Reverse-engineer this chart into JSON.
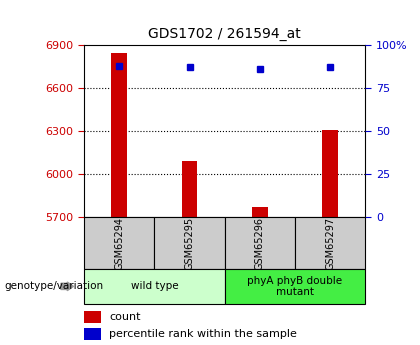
{
  "title": "GDS1702 / 261594_at",
  "samples": [
    "GSM65294",
    "GSM65295",
    "GSM65296",
    "GSM65297"
  ],
  "counts": [
    6840,
    6090,
    5770,
    6310
  ],
  "percentiles": [
    88,
    87,
    86,
    87
  ],
  "ylim_left": [
    5700,
    6900
  ],
  "ylim_right": [
    0,
    100
  ],
  "yticks_left": [
    5700,
    6000,
    6300,
    6600,
    6900
  ],
  "yticks_right": [
    0,
    25,
    50,
    75,
    100
  ],
  "bar_color": "#cc0000",
  "dot_color": "#0000cc",
  "groups": [
    {
      "label": "wild type",
      "indices": [
        0,
        1
      ],
      "color": "#ccffcc"
    },
    {
      "label": "phyA phyB double\nmutant",
      "indices": [
        2,
        3
      ],
      "color": "#44ee44"
    }
  ],
  "group_label": "genotype/variation",
  "legend_count": "count",
  "legend_percentile": "percentile rank within the sample",
  "bg_color": "#ffffff",
  "plot_bg": "#ffffff",
  "grid_color": "#000000",
  "tick_label_color_left": "#cc0000",
  "tick_label_color_right": "#0000cc",
  "sample_box_color": "#cccccc"
}
